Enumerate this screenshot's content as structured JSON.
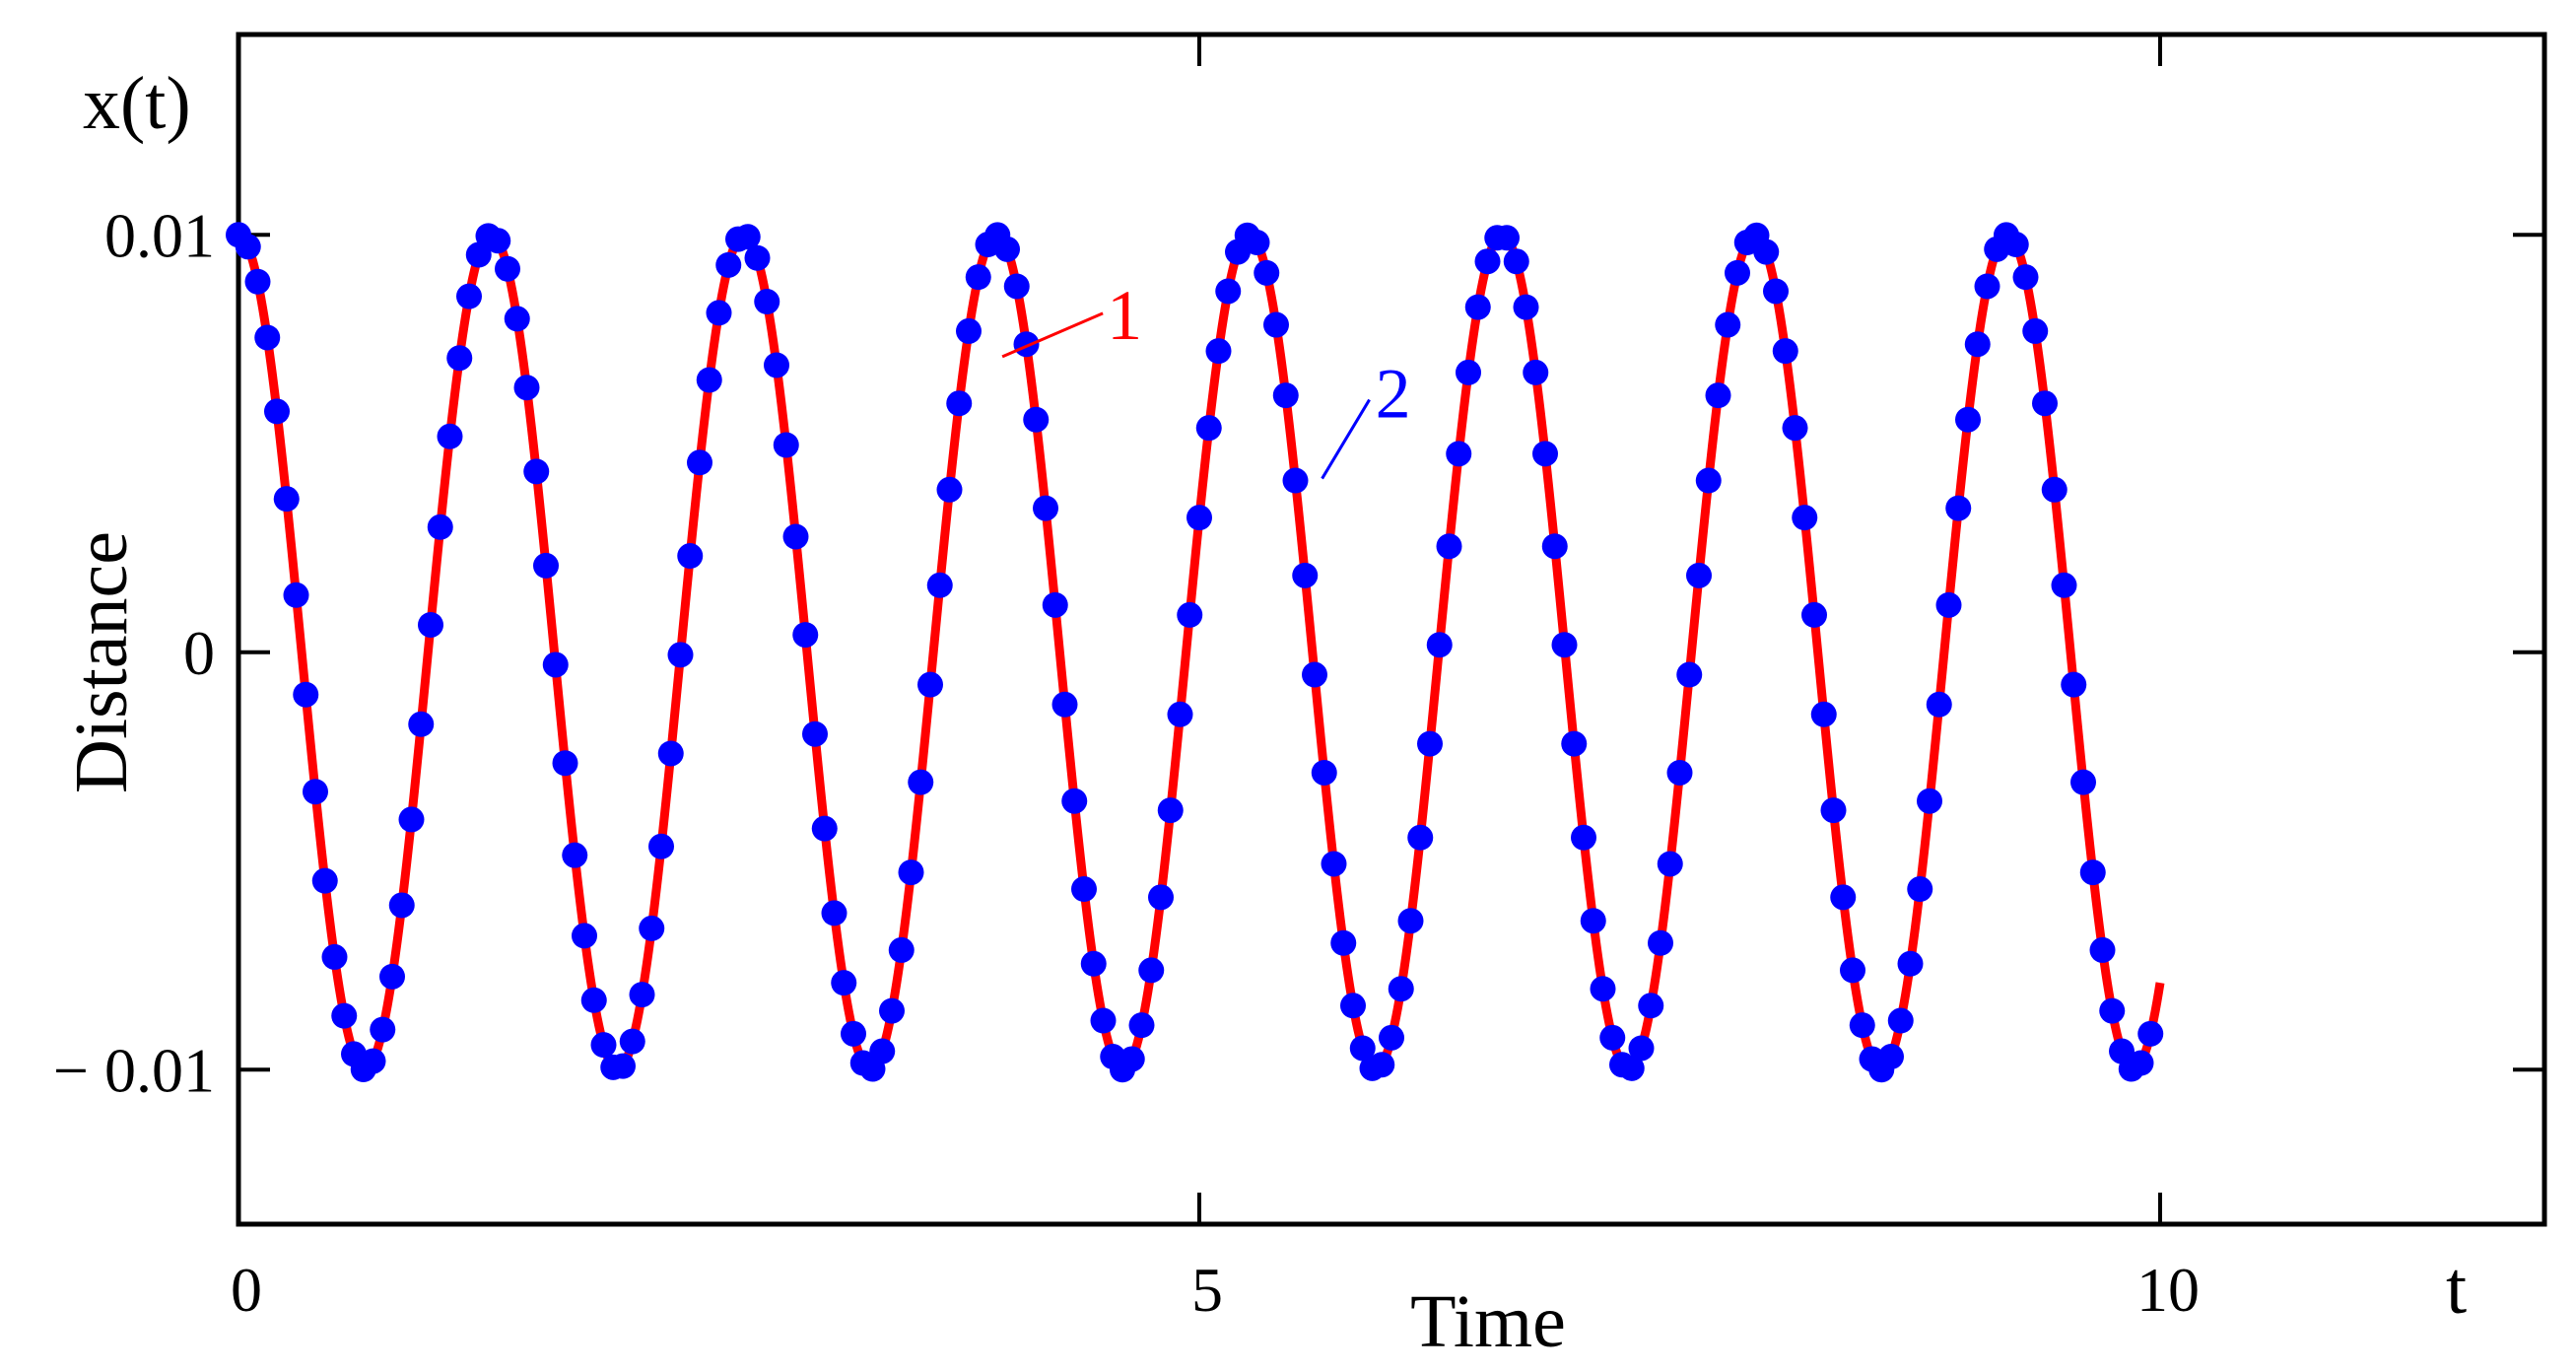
{
  "chart_data": {
    "type": "line",
    "title": "",
    "xlabel": "Time",
    "ylabel": "Distance",
    "x_var_label": "t",
    "y_var_label": "x(t)",
    "xlim": [
      0,
      12
    ],
    "ylim": [
      -0.0137,
      0.0148
    ],
    "x_ticks": [
      0,
      5,
      10
    ],
    "x_tick_labels": [
      "0",
      "5",
      "10"
    ],
    "y_ticks": [
      0.01,
      0,
      -0.01
    ],
    "y_tick_labels": [
      "0.01",
      "0",
      "− 0.01"
    ],
    "grid": false,
    "legend": "none",
    "series": [
      {
        "label": "1",
        "style": "solid line",
        "color": "#ff0000",
        "model": {
          "amplitude": 0.01,
          "period": 1.315,
          "x_start": 0,
          "x_end": 10
        }
      },
      {
        "label": "2",
        "style": "markers",
        "color": "#0000ff",
        "model": {
          "amplitude": 0.01,
          "period": 1.315,
          "x_start": 0,
          "x_end": 9.95,
          "marker_step": 0.05
        }
      }
    ],
    "annotations": [
      {
        "text": "1",
        "series": "1",
        "color": "#ff0000",
        "at_x": 4.18,
        "at_y": 0.0076
      },
      {
        "text": "2",
        "series": "2",
        "color": "#0000ff",
        "at_x": 5.68,
        "at_y": 0.0052
      }
    ]
  }
}
